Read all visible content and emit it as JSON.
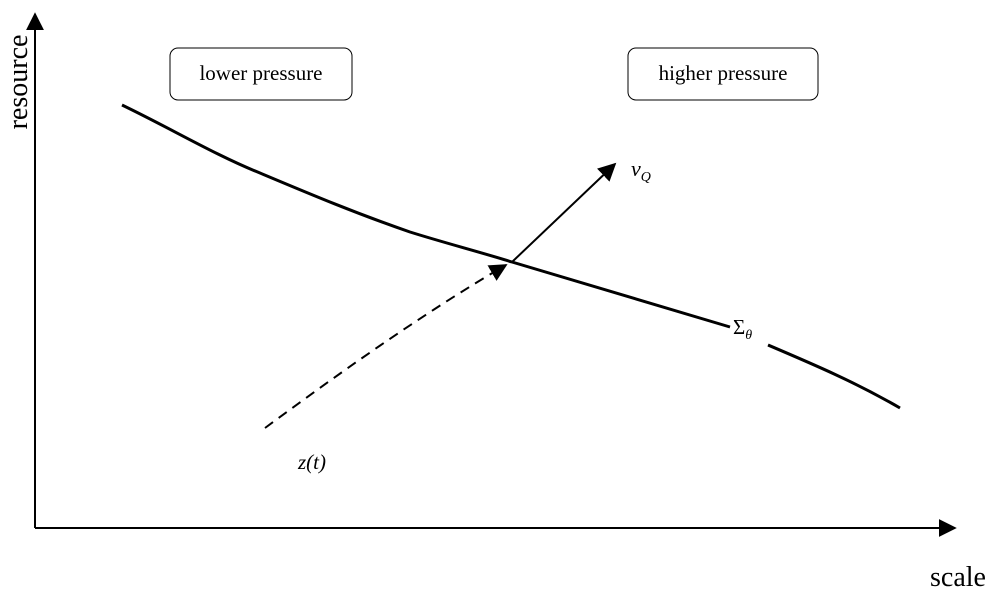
{
  "axes": {
    "y_label": "resource",
    "x_label": "scale"
  },
  "regions": [
    {
      "label": "lower pressure"
    },
    {
      "label": "higher pressure"
    }
  ],
  "curve": {
    "symbol": "Σ",
    "subscript": "θ"
  },
  "trajectory": {
    "label": "z(t)"
  },
  "vector": {
    "symbol": "ν",
    "subscript": "Q"
  }
}
